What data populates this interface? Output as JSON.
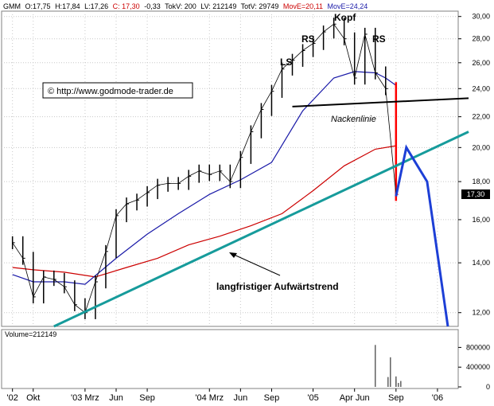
{
  "header": {
    "symbol": "GMM",
    "open": "O:17,75",
    "high": "H:17,84",
    "low": "L:17,26",
    "close": "C: 17,30",
    "change": "-0,33",
    "tokv": "TokV: 200",
    "lv": "LV: 212149",
    "totv": "TotV: 29749",
    "move20": "MovE=20,11",
    "move24": "MovE=24,24"
  },
  "colors": {
    "price": "#000000",
    "ma_red": "#cc0000",
    "ma_blue": "#1a1aa8",
    "trend": "#169b9b",
    "projection": "#1d3fd6",
    "last_candle": "#ff0000",
    "close_marker_bg": "#000000",
    "grid": "#c8c8c8"
  },
  "watermark": "© http://www.godmode-trader.de",
  "annotations": {
    "ls": "LS",
    "rs_left": "RS",
    "kopf": "Kopf",
    "rs_right": "RS",
    "nackenlinie": "Nackenlinie",
    "trend_label": "langfristiger Aufwärtstrend"
  },
  "close_marker": "17,30",
  "volume_panel": {
    "label": "Volume=212149",
    "ticks": [
      "800000",
      "400000",
      "0"
    ]
  },
  "chart_data": {
    "type": "line",
    "title": "",
    "price_axis": {
      "ticks": [
        "30,00",
        "28,00",
        "26,00",
        "24,00",
        "22,00",
        "20,00",
        "18,00",
        "16,00",
        "14,00",
        "12,00"
      ],
      "tick_values": [
        30,
        28,
        26,
        24,
        22,
        20,
        18,
        16,
        14,
        12
      ],
      "scale": "log",
      "ylim": [
        11.5,
        30.5
      ]
    },
    "x_axis": {
      "labels": [
        "'02",
        "Okt",
        "'03 Mrz",
        "Jun",
        "Sep",
        "'04 Mrz",
        "Jun",
        "Sep",
        "'05",
        "Apr Jun",
        "Sep",
        "'06"
      ],
      "dates": [
        "2002-08",
        "2002-10",
        "2003-03",
        "2003-06",
        "2003-09",
        "2004-03",
        "2004-06",
        "2004-09",
        "2005-01",
        "2005-05",
        "2005-09",
        "2006-01"
      ]
    },
    "series": [
      {
        "x": [
          "2002-08",
          "2002-09",
          "2002-10",
          "2002-11",
          "2002-12",
          "2003-01",
          "2003-02",
          "2003-03",
          "2003-04",
          "2003-05",
          "2003-06",
          "2003-07",
          "2003-08",
          "2003-09",
          "2003-10",
          "2003-11",
          "2003-12",
          "2004-01",
          "2004-02",
          "2004-03",
          "2004-04",
          "2004-05",
          "2004-06",
          "2004-07",
          "2004-08",
          "2004-09",
          "2004-10",
          "2004-11",
          "2004-12",
          "2005-01",
          "2005-02",
          "2005-03",
          "2005-04",
          "2005-05",
          "2005-06",
          "2005-07",
          "2005-08",
          "2005-09"
        ],
        "values": [
          14.9,
          14.2,
          12.6,
          13.4,
          13.3,
          13.0,
          12.3,
          12.0,
          13.2,
          14.5,
          16.2,
          16.8,
          17.0,
          17.4,
          17.8,
          17.9,
          17.9,
          18.3,
          18.6,
          18.4,
          18.6,
          18.0,
          19.4,
          21.0,
          22.5,
          23.8,
          25.5,
          26.2,
          27.0,
          27.6,
          28.6,
          29.3,
          28.0,
          24.8,
          28.4,
          25.2,
          24.0,
          17.3
        ]
      },
      {
        "name": "MovE=24,24",
        "x": [
          "2002-08",
          "2002-10",
          "2003-01",
          "2003-03",
          "2003-06",
          "2003-09",
          "2003-12",
          "2004-03",
          "2004-06",
          "2004-09",
          "2004-12",
          "2005-03",
          "2005-05",
          "2005-07",
          "2005-08",
          "2005-09"
        ],
        "values": [
          13.5,
          13.2,
          13.2,
          13.1,
          14.2,
          15.3,
          16.3,
          17.3,
          18.1,
          19.1,
          22.4,
          24.8,
          25.3,
          25.2,
          24.8,
          24.24
        ]
      },
      {
        "name": "MovE=20,11",
        "x": [
          "2002-08",
          "2002-10",
          "2003-01",
          "2003-04",
          "2003-07",
          "2003-10",
          "2004-01",
          "2004-04",
          "2004-07",
          "2004-10",
          "2005-01",
          "2005-04",
          "2005-07",
          "2005-09"
        ],
        "values": [
          13.8,
          13.7,
          13.6,
          13.4,
          13.8,
          14.2,
          14.8,
          15.2,
          15.7,
          16.3,
          17.5,
          18.9,
          19.9,
          20.11
        ]
      }
    ],
    "trendline": {
      "x": [
        "2002-12",
        "2006-04"
      ],
      "values": [
        11.5,
        21.0
      ]
    },
    "neckline": {
      "x": [
        "2004-11",
        "2006-04"
      ],
      "values": [
        22.7,
        23.3
      ]
    },
    "projection": {
      "x": [
        "2005-09",
        "2005-10",
        "2005-12",
        "2006-02"
      ],
      "values": [
        17.2,
        20.0,
        18.0,
        11.5
      ]
    },
    "volume": {
      "x": [
        "2005-07",
        "2005-08",
        "2005-08",
        "2005-09",
        "2005-09",
        "2005-09",
        "2005-09"
      ],
      "values": [
        850000,
        200000,
        600000,
        150000,
        80000,
        120000,
        212149
      ]
    }
  }
}
